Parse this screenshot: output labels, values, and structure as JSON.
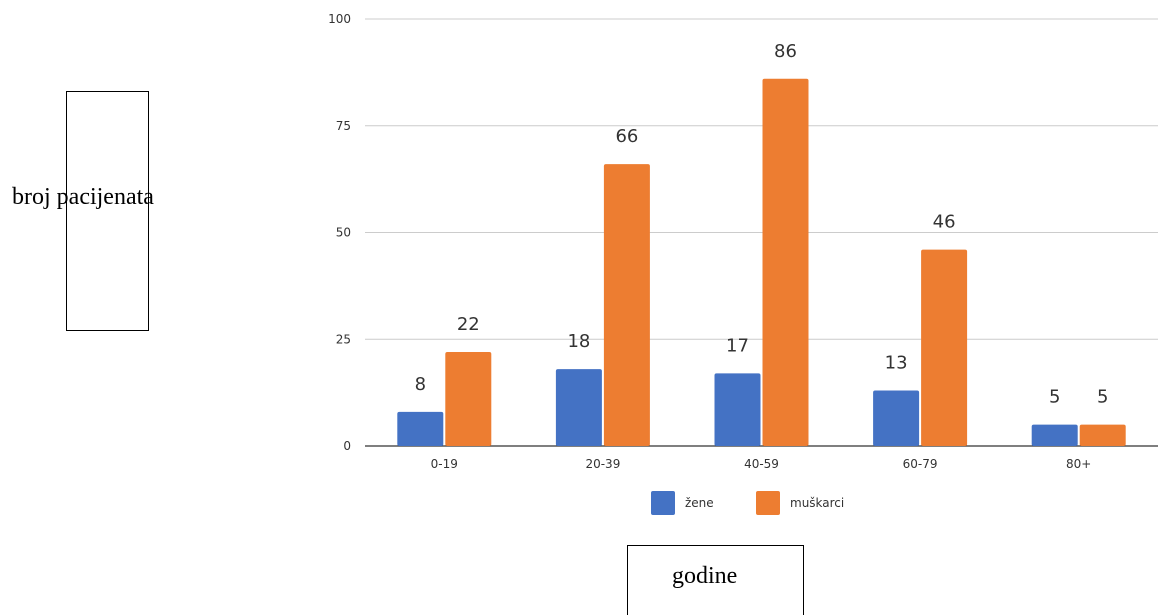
{
  "chart_data": {
    "type": "bar",
    "categories": [
      "0-19",
      "20-39",
      "40-59",
      "60-79",
      "80+"
    ],
    "series": [
      {
        "name": "žene",
        "values": [
          8,
          18,
          17,
          13,
          5
        ],
        "color": "#4472c4"
      },
      {
        "name": "muškarci",
        "values": [
          22,
          66,
          86,
          46,
          5
        ],
        "color": "#ed7d31"
      }
    ],
    "ylim": [
      0,
      100
    ],
    "yticks": [
      0,
      25,
      50,
      75,
      100
    ],
    "ylabel": "broj pacijenata",
    "xlabel": "godine",
    "grid": true,
    "legend": "bottom"
  }
}
